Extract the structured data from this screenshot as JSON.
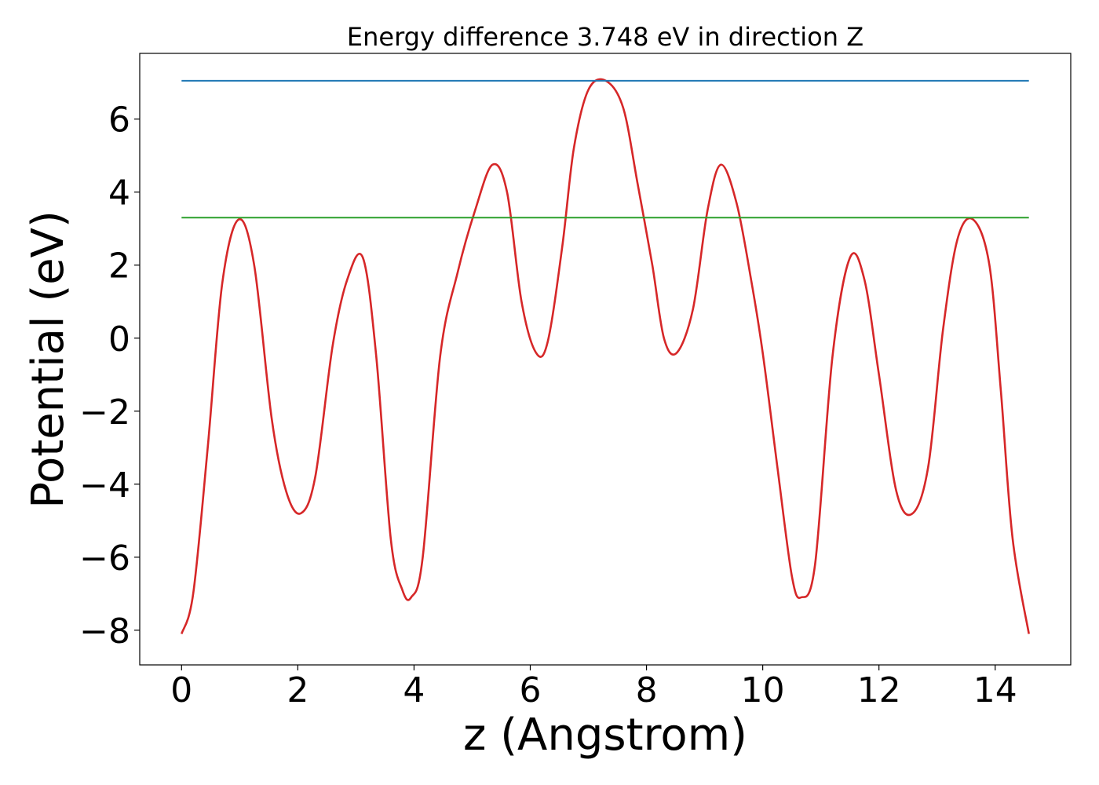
{
  "chart_data": {
    "type": "line",
    "title": "Energy difference 3.748 eV in direction Z",
    "xlabel": "z (Angstrom)",
    "ylabel": "Potential (eV)",
    "xlim": [
      -0.72,
      15.3
    ],
    "ylim": [
      -8.95,
      7.8
    ],
    "xticks": [
      0,
      2,
      4,
      6,
      8,
      10,
      12,
      14
    ],
    "xtick_labels": [
      "0",
      "2",
      "4",
      "6",
      "8",
      "10",
      "12",
      "14"
    ],
    "yticks": [
      -8,
      -6,
      -4,
      -2,
      0,
      2,
      4,
      6
    ],
    "ytick_labels": [
      "−8",
      "−6",
      "−4",
      "−2",
      "0",
      "2",
      "4",
      "6"
    ],
    "grid": false,
    "legend": "none",
    "series": [
      {
        "color": "#d62728",
        "x": [
          0.0,
          0.2,
          0.45,
          0.7,
          0.98,
          1.25,
          1.55,
          1.8,
          2.05,
          2.3,
          2.6,
          2.85,
          3.12,
          3.35,
          3.6,
          3.8,
          3.95,
          4.15,
          4.45,
          4.75,
          5.05,
          5.35,
          5.6,
          5.85,
          6.1,
          6.3,
          6.55,
          6.75,
          7.0,
          7.3,
          7.6,
          7.85,
          8.1,
          8.3,
          8.52,
          8.8,
          9.05,
          9.28,
          9.55,
          9.8,
          10.0,
          10.25,
          10.5,
          10.66,
          10.9,
          11.2,
          11.5,
          11.75,
          12.0,
          12.3,
          12.58,
          12.85,
          13.1,
          13.35,
          13.62,
          13.9,
          14.1,
          14.3,
          14.58
        ],
        "y": [
          -8.1,
          -7.0,
          -3.0,
          1.5,
          3.25,
          2.0,
          -2.2,
          -4.2,
          -4.8,
          -3.8,
          -0.2,
          1.6,
          2.2,
          -0.5,
          -5.5,
          -6.9,
          -7.1,
          -6.0,
          -0.5,
          1.8,
          3.5,
          4.75,
          4.0,
          1.0,
          -0.4,
          -0.1,
          2.5,
          5.2,
          6.8,
          7.05,
          6.3,
          4.2,
          2.0,
          0.0,
          -0.4,
          0.8,
          3.5,
          4.75,
          3.7,
          1.6,
          -0.4,
          -3.5,
          -6.5,
          -7.1,
          -6.2,
          -0.5,
          2.2,
          1.6,
          -1.0,
          -4.2,
          -4.8,
          -3.5,
          0.2,
          2.7,
          3.25,
          2.0,
          -1.5,
          -5.5,
          -8.1
        ]
      },
      {
        "color": "#1f77b4",
        "x": [
          0.0,
          14.58
        ],
        "y": [
          7.05,
          7.05
        ]
      },
      {
        "color": "#2ca02c",
        "x": [
          0.0,
          14.58
        ],
        "y": [
          3.3,
          3.3
        ]
      }
    ]
  }
}
